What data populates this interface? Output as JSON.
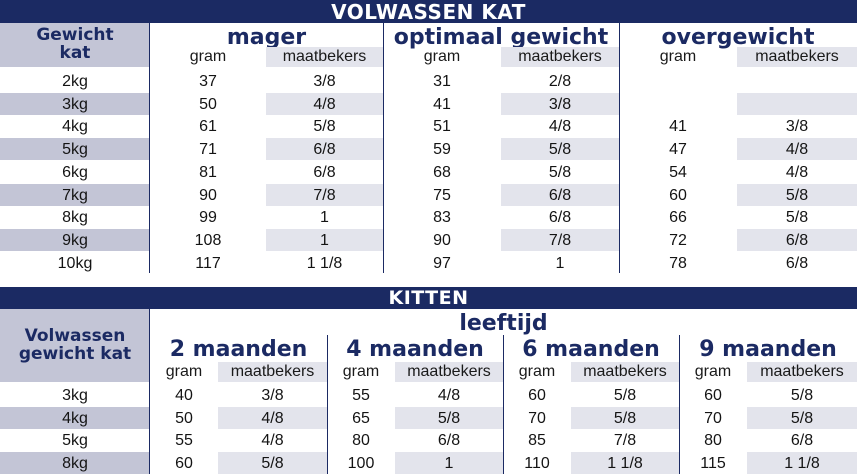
{
  "adult": {
    "title": "VOLWASSEN KAT",
    "row_header": [
      "Gewicht",
      "kat"
    ],
    "groups": [
      "mager",
      "optimaal gewicht",
      "overgewicht"
    ],
    "sub_headers": [
      "gram",
      "maatbekers"
    ],
    "rows": [
      {
        "label": "2kg",
        "values": [
          "37",
          "3/8",
          "31",
          "2/8",
          "",
          ""
        ]
      },
      {
        "label": "3kg",
        "values": [
          "50",
          "4/8",
          "41",
          "3/8",
          "",
          ""
        ]
      },
      {
        "label": "4kg",
        "values": [
          "61",
          "5/8",
          "51",
          "4/8",
          "41",
          "3/8"
        ]
      },
      {
        "label": "5kg",
        "values": [
          "71",
          "6/8",
          "59",
          "5/8",
          "47",
          "4/8"
        ]
      },
      {
        "label": "6kg",
        "values": [
          "81",
          "6/8",
          "68",
          "5/8",
          "54",
          "4/8"
        ]
      },
      {
        "label": "7kg",
        "values": [
          "90",
          "7/8",
          "75",
          "6/8",
          "60",
          "5/8"
        ]
      },
      {
        "label": "8kg",
        "values": [
          "99",
          "1",
          "83",
          "6/8",
          "66",
          "5/8"
        ]
      },
      {
        "label": "9kg",
        "values": [
          "108",
          "1",
          "90",
          "7/8",
          "72",
          "6/8"
        ]
      },
      {
        "label": "10kg",
        "values": [
          "117",
          "1 1/8",
          "97",
          "1",
          "78",
          "6/8"
        ]
      }
    ]
  },
  "kitten": {
    "title": "KITTEN",
    "row_header": [
      "Volwassen",
      "gewicht kat"
    ],
    "super_header": "leeftijd",
    "groups": [
      "2 maanden",
      "4 maanden",
      "6 maanden",
      "9 maanden"
    ],
    "sub_headers": [
      "gram",
      "maatbekers"
    ],
    "rows": [
      {
        "label": "3kg",
        "values": [
          "40",
          "3/8",
          "55",
          "4/8",
          "60",
          "5/8",
          "60",
          "5/8"
        ]
      },
      {
        "label": "4kg",
        "values": [
          "50",
          "4/8",
          "65",
          "5/8",
          "70",
          "5/8",
          "70",
          "5/8"
        ]
      },
      {
        "label": "5kg",
        "values": [
          "55",
          "4/8",
          "80",
          "6/8",
          "85",
          "7/8",
          "80",
          "6/8"
        ]
      },
      {
        "label": "8kg",
        "values": [
          "60",
          "5/8",
          "100",
          "1",
          "110",
          "1 1/8",
          "115",
          "1 1/8"
        ]
      }
    ]
  }
}
